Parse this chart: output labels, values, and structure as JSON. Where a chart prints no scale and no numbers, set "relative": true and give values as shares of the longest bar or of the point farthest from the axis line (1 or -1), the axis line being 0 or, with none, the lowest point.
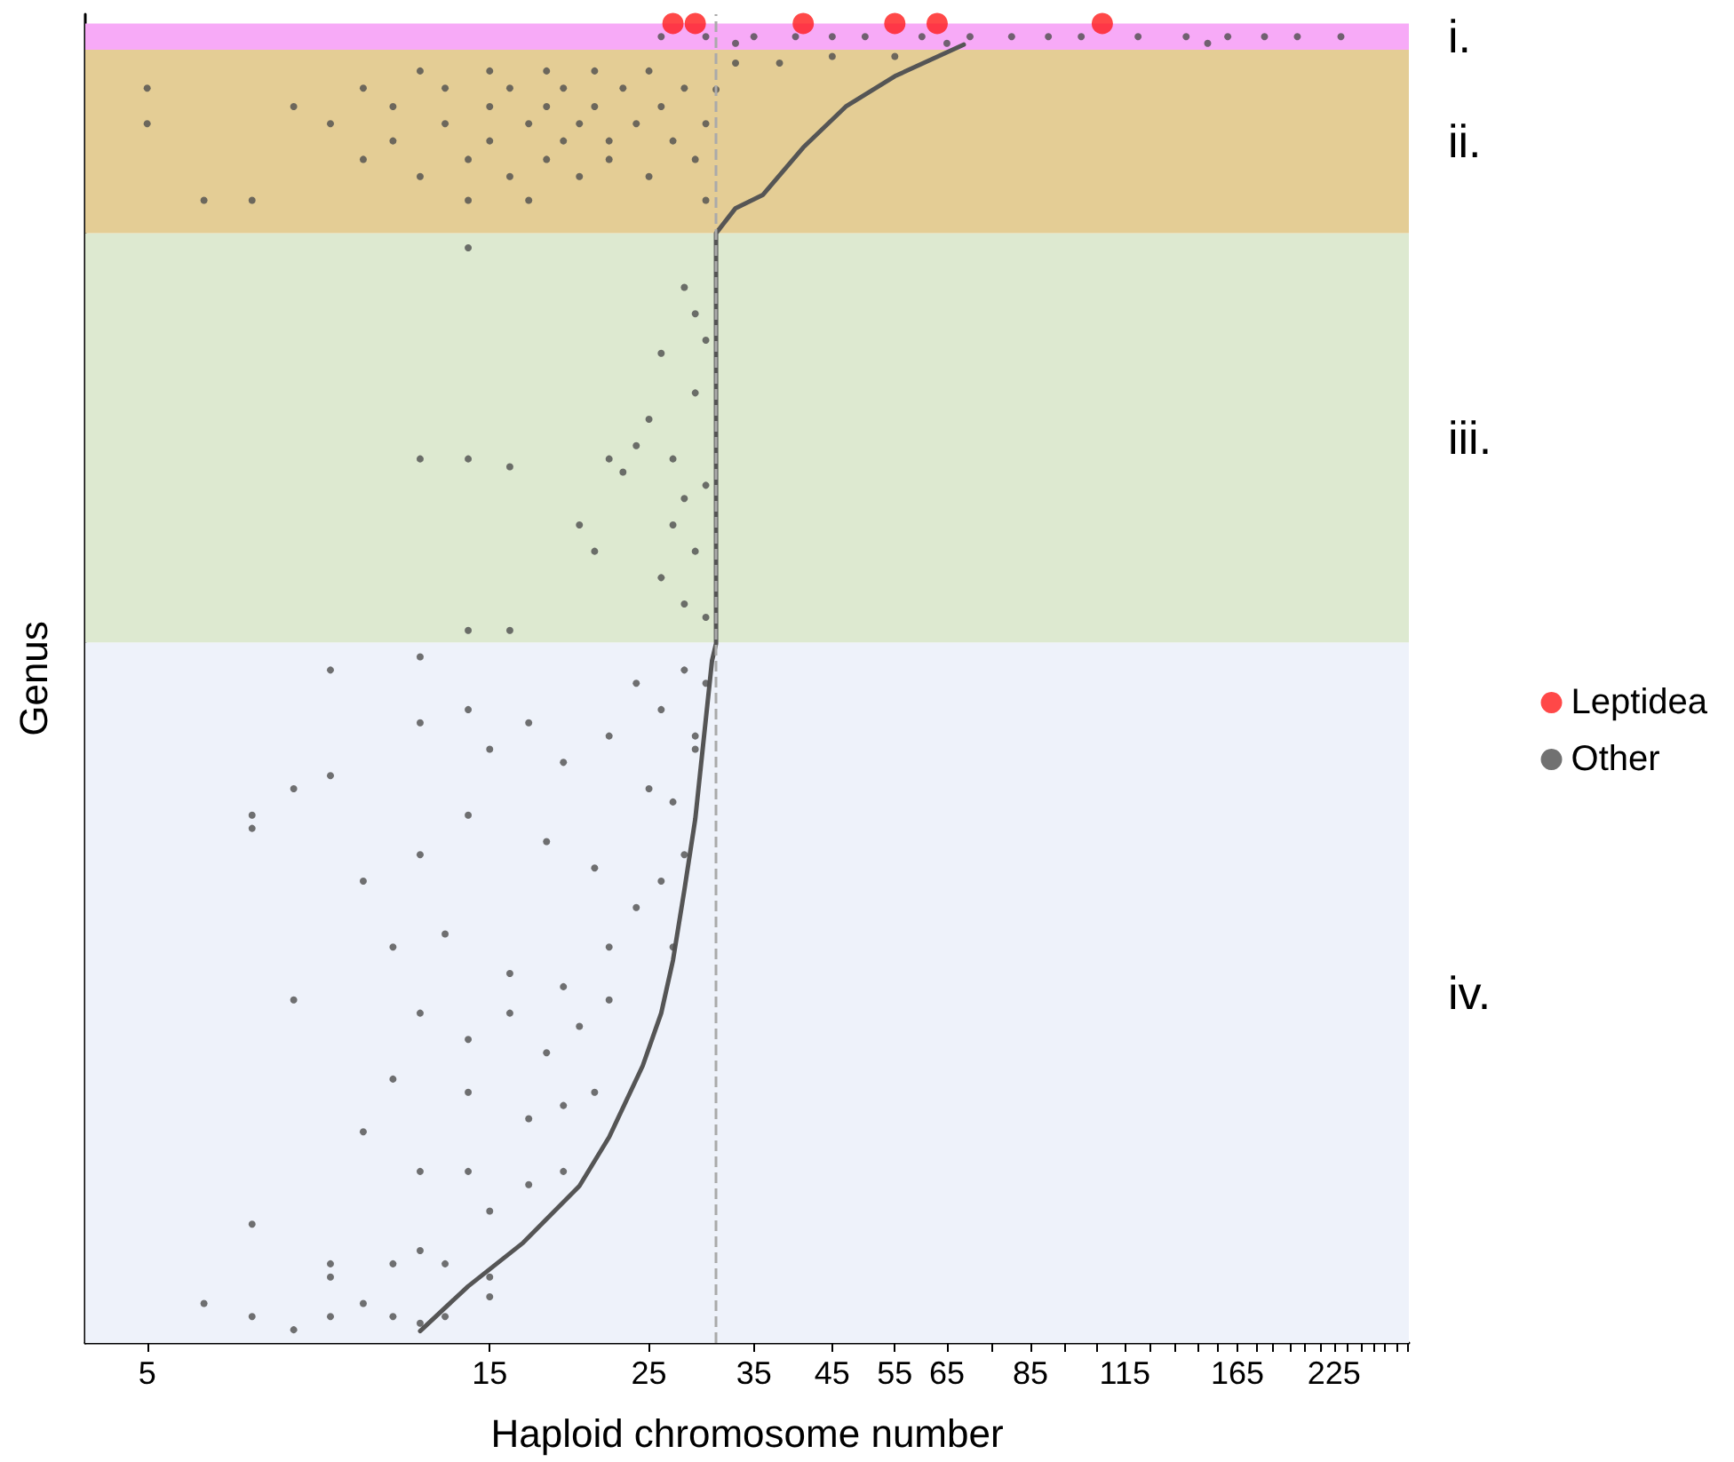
{
  "chart_data": {
    "type": "scatter",
    "xlabel": "Haploid chromosome number",
    "ylabel": "Genus",
    "log": "x",
    "relative": true,
    "tick_labels": "x",
    "grid": false,
    "legend": "right",
    "xlim": [
      4.1,
      286
    ],
    "xticks": [
      5,
      15,
      25,
      35,
      45,
      55,
      65,
      {
        "value": 75,
        "label": null
      },
      85,
      {
        "value": 95,
        "label": null
      },
      {
        "value": 105,
        "label": null
      },
      115,
      {
        "value": 125,
        "label": null
      },
      {
        "value": 135,
        "label": null
      },
      {
        "value": 145,
        "label": null
      },
      {
        "value": 155,
        "label": null
      },
      165,
      {
        "value": 175,
        "label": null
      },
      {
        "value": 185,
        "label": null
      },
      {
        "value": 195,
        "label": null
      },
      {
        "value": 205,
        "label": null
      },
      {
        "value": 215,
        "label": null
      },
      225,
      {
        "value": 235,
        "label": null
      },
      {
        "value": 245,
        "label": null
      },
      {
        "value": 255,
        "label": null
      },
      {
        "value": 265,
        "label": null
      },
      {
        "value": 275,
        "label": null
      },
      {
        "value": 285,
        "label": null
      }
    ],
    "bands": [
      {
        "axis": "y",
        "from": 0,
        "to": 0.531,
        "label": "iv.",
        "color": "#eef2fa"
      },
      {
        "axis": "y",
        "from": 0.531,
        "to": 0.841,
        "label": "iii.",
        "color": "#dde9d0"
      },
      {
        "axis": "y",
        "from": 0.841,
        "to": 0.98,
        "label": "ii.",
        "color": "#e4cd95"
      },
      {
        "axis": "y",
        "from": 0.98,
        "to": 1,
        "label": "i.",
        "color": "#f7aaf7"
      }
    ],
    "ref_lines": [
      {
        "axis": "x",
        "value": 31,
        "color": "#aaaaaa",
        "line_style": "dashed"
      }
    ],
    "series": [
      {
        "type": "line",
        "color": "#555555",
        "x": [
          12,
          14,
          16.7,
          20,
          22,
          24.5,
          26,
          27,
          28,
          29,
          30.6,
          31,
          31,
          33,
          36,
          41,
          47,
          55,
          68.6
        ],
        "values": [
          0.009,
          0.043,
          0.076,
          0.119,
          0.156,
          0.21,
          0.25,
          0.29,
          0.343,
          0.397,
          0.517,
          0.53,
          0.841,
          0.86,
          0.87,
          0.906,
          0.937,
          0.96,
          0.984
        ]
      },
      {
        "name": "Other",
        "marker": "circle",
        "color": "#4d4d4d",
        "x": [
          26,
          30,
          35,
          40,
          45,
          50,
          60,
          70,
          80,
          90,
          100,
          120,
          140,
          160,
          180,
          200,
          230,
          33,
          65,
          150,
          5,
          5,
          6,
          7,
          8,
          9,
          10,
          10,
          11,
          11,
          12,
          12,
          13,
          13,
          14,
          14,
          15,
          15,
          15,
          16,
          16,
          17,
          17,
          18,
          18,
          18,
          19,
          19,
          20,
          20,
          21,
          21,
          22,
          22,
          23,
          24,
          25,
          25,
          26,
          27,
          28,
          29,
          30,
          30,
          31,
          33,
          38,
          45,
          55,
          14,
          12,
          14,
          16,
          22,
          23,
          24,
          25,
          26,
          27,
          28,
          28,
          29,
          29,
          20,
          21,
          26,
          28,
          30,
          30,
          30,
          14,
          16,
          27,
          29,
          9,
          12,
          12,
          14,
          15,
          17,
          19,
          22,
          24,
          26,
          28,
          8,
          9,
          7,
          7,
          10,
          12,
          14,
          18,
          21,
          25,
          27,
          29,
          11,
          13,
          16,
          19,
          22,
          24,
          26,
          8,
          12,
          14,
          16,
          18,
          20,
          22,
          11,
          14,
          17,
          19,
          21,
          10,
          12,
          14,
          15,
          17,
          19,
          7,
          9,
          9,
          11,
          12,
          13,
          15,
          6,
          7,
          8,
          9,
          10,
          11,
          12,
          13,
          15,
          27,
          28,
          29,
          30
        ],
        "values": [
          0.99,
          0.99,
          0.99,
          0.99,
          0.99,
          0.99,
          0.99,
          0.99,
          0.99,
          0.99,
          0.99,
          0.99,
          0.99,
          0.99,
          0.99,
          0.99,
          0.99,
          0.985,
          0.985,
          0.985,
          0.951,
          0.924,
          0.866,
          0.866,
          0.937,
          0.924,
          0.951,
          0.897,
          0.937,
          0.911,
          0.964,
          0.884,
          0.951,
          0.924,
          0.897,
          0.866,
          0.964,
          0.937,
          0.911,
          0.951,
          0.884,
          0.924,
          0.866,
          0.964,
          0.937,
          0.897,
          0.951,
          0.911,
          0.924,
          0.884,
          0.964,
          0.937,
          0.911,
          0.897,
          0.951,
          0.924,
          0.964,
          0.884,
          0.937,
          0.911,
          0.951,
          0.897,
          0.924,
          0.866,
          0.95,
          0.97,
          0.97,
          0.975,
          0.975,
          0.83,
          0.67,
          0.67,
          0.664,
          0.67,
          0.66,
          0.68,
          0.7,
          0.75,
          0.67,
          0.8,
          0.64,
          0.72,
          0.6,
          0.62,
          0.6,
          0.58,
          0.56,
          0.55,
          0.76,
          0.65,
          0.54,
          0.54,
          0.62,
          0.78,
          0.51,
          0.52,
          0.47,
          0.48,
          0.45,
          0.47,
          0.44,
          0.46,
          0.5,
          0.48,
          0.51,
          0.42,
          0.43,
          0.4,
          0.39,
          0.35,
          0.37,
          0.4,
          0.38,
          0.36,
          0.42,
          0.41,
          0.45,
          0.3,
          0.31,
          0.28,
          0.27,
          0.3,
          0.33,
          0.35,
          0.26,
          0.25,
          0.23,
          0.25,
          0.22,
          0.24,
          0.26,
          0.2,
          0.19,
          0.17,
          0.18,
          0.19,
          0.16,
          0.13,
          0.13,
          0.1,
          0.12,
          0.13,
          0.09,
          0.06,
          0.05,
          0.06,
          0.07,
          0.06,
          0.05,
          0.03,
          0.02,
          0.01,
          0.02,
          0.03,
          0.02,
          0.015,
          0.02,
          0.035,
          0.3,
          0.37,
          0.46,
          0.5
        ]
      },
      {
        "name": "Leptidea",
        "marker": "circle",
        "color": "#ff1a1a",
        "x": [
          27,
          29,
          41,
          55,
          63,
          107
        ],
        "values": [
          1,
          1,
          1,
          1,
          1,
          1
        ]
      }
    ]
  }
}
